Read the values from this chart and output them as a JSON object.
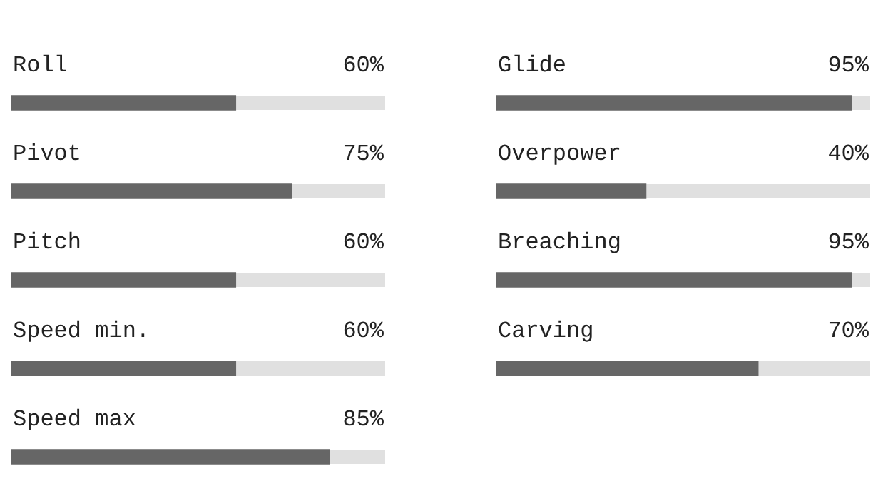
{
  "chart_data": [
    {
      "type": "bar",
      "orientation": "horizontal",
      "categories": [
        "Roll",
        "Pivot",
        "Pitch",
        "Speed min.",
        "Speed max"
      ],
      "values": [
        60,
        75,
        60,
        60,
        85
      ],
      "value_labels": [
        "60%",
        "75%",
        "60%",
        "60%",
        "85%"
      ],
      "color": "#666666",
      "xlim": [
        0,
        100
      ],
      "tick_labels": false
    },
    {
      "type": "bar",
      "orientation": "horizontal",
      "categories": [
        "Glide",
        "Overpower",
        "Breaching",
        "Carving"
      ],
      "values": [
        95,
        40,
        95,
        70
      ],
      "value_labels": [
        "95%",
        "40%",
        "95%",
        "70%"
      ],
      "color": "#666666",
      "xlim": [
        0,
        100
      ],
      "tick_labels": false
    }
  ]
}
